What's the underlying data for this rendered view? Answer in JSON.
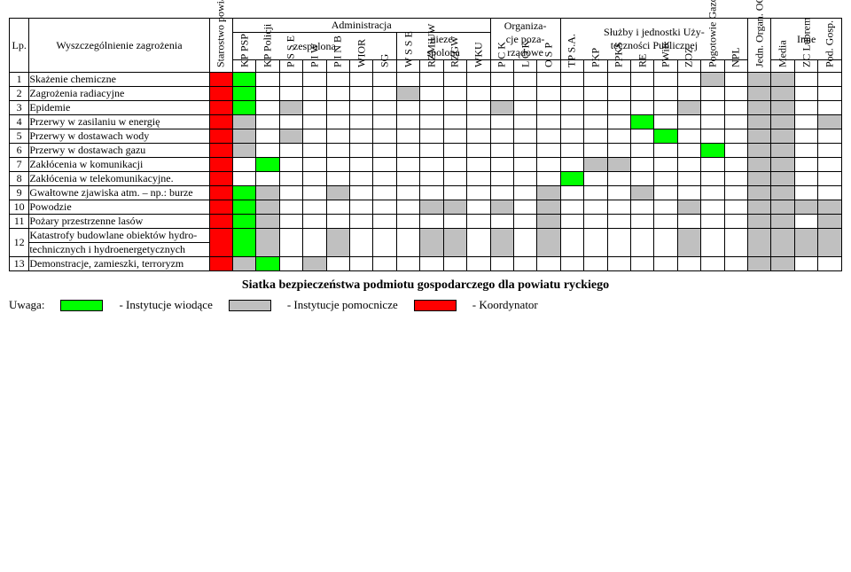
{
  "colors": {
    "red": "#ff0000",
    "green": "#00ff00",
    "gray": "#c0c0c0",
    "white": "#ffffff"
  },
  "top_groups": {
    "admin": "Administracja",
    "admin_sub1": "zespolona",
    "admin_sub2": "nieze-\nspolona",
    "org": "Organiza-\ncje poza-\nrządowe",
    "services": "Służby i jednostki Uży-\nteczności Publicznej",
    "other": "Inne"
  },
  "row_header_lp": "Lp.",
  "row_header_name": "Wyszczególnienie zagrożenia",
  "col_labels": [
    "Starostwo powiatowe",
    "KP PSP",
    "KP Policji",
    "P S S E",
    "P I W",
    "P I N B",
    "WIOR",
    "SG",
    "W S S E",
    "RZMiUW",
    "RZGW",
    "WKU",
    "P C K",
    "L O K",
    "O S P",
    "TP S.A.",
    "PKP",
    "PPKS",
    "RE",
    "PWiK",
    "ZOZ",
    "Pogotowie Gazowe",
    "NPL",
    "Jedn. Organ. OC",
    "Media",
    "ZC Lubrem",
    "Pod. Gosp."
  ],
  "rows": [
    {
      "lp": "1",
      "name": "Skażenie chemiczne",
      "cells": [
        "r",
        "g",
        "",
        "",
        "",
        "",
        "",
        "",
        "",
        "",
        "",
        "",
        "",
        "",
        "",
        "",
        "",
        "",
        "",
        "",
        "",
        "w",
        "",
        "g",
        "g",
        "",
        ""
      ]
    },
    {
      "lp": "2",
      "name": "Zagrożenia radiacyjne",
      "cells": [
        "r",
        "g",
        "",
        "",
        "",
        "",
        "",
        "",
        "g",
        "",
        "",
        "",
        "",
        "",
        "",
        "",
        "",
        "",
        "",
        "",
        "",
        "",
        "",
        "g",
        "g",
        "",
        ""
      ]
    },
    {
      "lp": "3",
      "name": "Epidemie",
      "cells": [
        "r",
        "g",
        "",
        "g",
        "",
        "",
        "",
        "",
        "",
        "",
        "",
        "",
        "g",
        "",
        "",
        "",
        "",
        "",
        "",
        "",
        "g",
        "",
        "",
        "g",
        "g",
        "",
        ""
      ]
    },
    {
      "lp": "4",
      "name": "Przerwy w zasilaniu w energię",
      "cells": [
        "r",
        "g",
        "",
        "",
        "",
        "",
        "",
        "",
        "",
        "",
        "",
        "",
        "",
        "",
        "",
        "",
        "",
        "",
        "g",
        "",
        "",
        "",
        "",
        "g",
        "g",
        "",
        "g"
      ]
    },
    {
      "lp": "5",
      "name": "Przerwy w dostawach wody",
      "cells": [
        "r",
        "g",
        "",
        "g",
        "",
        "",
        "",
        "",
        "",
        "",
        "",
        "",
        "",
        "",
        "",
        "",
        "",
        "",
        "",
        "g",
        "",
        "",
        "",
        "g",
        "g",
        "",
        ""
      ]
    },
    {
      "lp": "6",
      "name": "Przerwy w dostawach gazu",
      "cells": [
        "r",
        "g",
        "",
        "",
        "",
        "",
        "",
        "",
        "",
        "",
        "",
        "",
        "",
        "",
        "",
        "",
        "",
        "",
        "",
        "",
        "",
        "g",
        "",
        "g",
        "g",
        "",
        ""
      ]
    },
    {
      "lp": "7",
      "name": "Zakłócenia w  komunikacji",
      "cells": [
        "r",
        "",
        "g",
        "",
        "",
        "",
        "",
        "",
        "",
        "",
        "",
        "",
        "",
        "",
        "",
        "",
        "g",
        "g",
        "",
        "",
        "",
        "",
        "",
        "g",
        "g",
        "",
        ""
      ]
    },
    {
      "lp": "8",
      "name": "Zakłócenia w telekomunikacyjne.",
      "cells": [
        "r",
        "",
        "",
        "",
        "",
        "",
        "",
        "",
        "",
        "",
        "",
        "",
        "",
        "",
        "",
        "g",
        "",
        "",
        "",
        "",
        "",
        "",
        "",
        "g",
        "g",
        "",
        ""
      ]
    },
    {
      "lp": "9",
      "name": "Gwałtowne zjawiska atm. – np.: burze",
      "cells": [
        "r",
        "g",
        "g",
        "",
        "",
        "g",
        "",
        "",
        "",
        "",
        "",
        "",
        "",
        "",
        "g",
        "",
        "",
        "",
        "g",
        "",
        "",
        "",
        "",
        "g",
        "g",
        "",
        ""
      ]
    },
    {
      "lp": "10",
      "name": "Powodzie",
      "cells": [
        "r",
        "g",
        "g",
        "",
        "",
        "",
        "",
        "",
        "",
        "g",
        "g",
        "",
        "g",
        "",
        "g",
        "",
        "",
        "",
        "",
        "",
        "g",
        "",
        "",
        "g",
        "g",
        "g",
        "g"
      ]
    },
    {
      "lp": "11",
      "name": "Pożary przestrzenne lasów",
      "cells": [
        "r",
        "g",
        "g",
        "",
        "",
        "",
        "",
        "",
        "",
        "",
        "",
        "",
        "",
        "",
        "g",
        "",
        "",
        "",
        "",
        "",
        "",
        "",
        "",
        "g",
        "g",
        "",
        "g"
      ]
    },
    {
      "lp": "12",
      "name": "Katastrofy budowlane obiektów hydro-\ntechnicznych i hydroenergetycznych",
      "cells": [
        "r",
        "g",
        "g",
        "",
        "",
        "g",
        "",
        "",
        "",
        "g",
        "g",
        "",
        "g",
        "",
        "g",
        "",
        "",
        "",
        "",
        "",
        "g",
        "",
        "",
        "g",
        "g",
        "g",
        "g"
      ]
    },
    {
      "lp": "13",
      "name": "Demonstracje, zamieszki, terroryzm",
      "cells": [
        "r",
        "g",
        "g",
        "",
        "g",
        "",
        "",
        "",
        "",
        "",
        "",
        "",
        "",
        "",
        "",
        "",
        "",
        "",
        "",
        "",
        "",
        "",
        "",
        "g",
        "g",
        "",
        ""
      ]
    }
  ],
  "footer_title": "Siatka bezpieczeństwa podmiotu gospodarczego dla powiatu ryckiego",
  "legend": {
    "uwaga": "Uwaga:",
    "lead": "- Instytucje wiodące",
    "helper": "- Instytucje pomocnicze",
    "coord": "- Koordynator"
  }
}
